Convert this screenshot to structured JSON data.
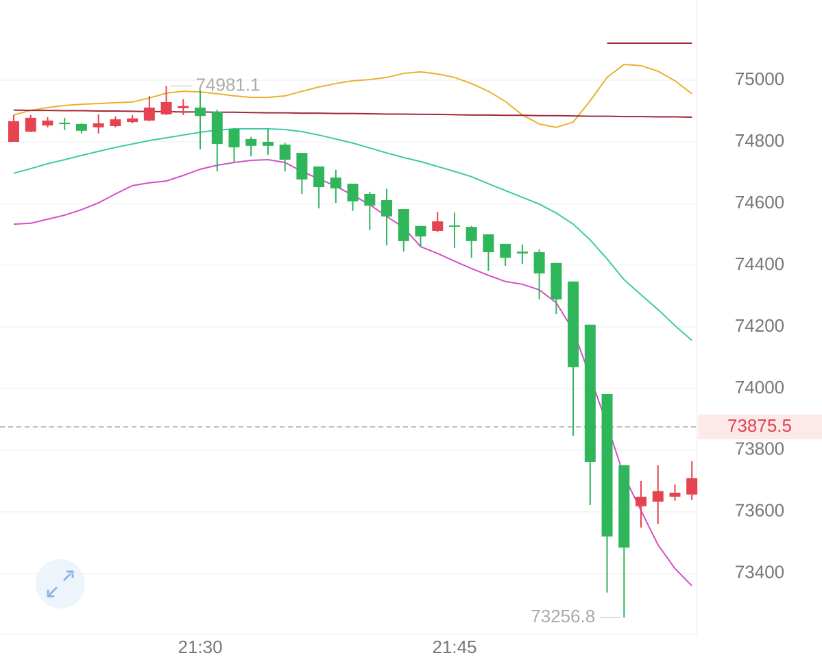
{
  "chart_data": {
    "type": "candlestick",
    "categories": [
      null,
      null,
      null,
      null,
      null,
      null,
      null,
      null,
      null,
      null,
      null,
      "21:30",
      null,
      null,
      null,
      null,
      null,
      null,
      null,
      null,
      null,
      null,
      null,
      null,
      null,
      null,
      "21:45",
      null,
      null,
      null,
      null,
      null,
      null,
      null,
      null,
      null,
      null,
      null,
      null,
      null,
      null
    ],
    "open": [
      74800,
      74833,
      74853,
      74862,
      74858,
      74847,
      74851,
      74864,
      74869,
      74889,
      74909,
      74911,
      74898,
      74842,
      74809,
      74800,
      74791,
      74764,
      74720,
      74684,
      74664,
      74631,
      74611,
      74582,
      74527,
      74511,
      74529,
      74524,
      74500,
      74469,
      74444,
      74442,
      74407,
      74347,
      74207,
      73982,
      73751,
      73618,
      73633,
      73649,
      73656
    ],
    "high": [
      74887,
      74887,
      74880,
      74878,
      74860,
      74889,
      74882,
      74887,
      74949,
      74981.1,
      74938,
      74967,
      74904,
      74844,
      74816,
      74842,
      74796,
      74764,
      74720,
      74709,
      74664,
      74638,
      74647,
      74582,
      74527,
      74573,
      74571,
      74527,
      74500,
      74469,
      74467,
      74451,
      74407,
      74347,
      74207,
      73982,
      73751,
      73700,
      73751,
      73689,
      73764
    ],
    "low": [
      74800,
      74831,
      74847,
      74838,
      74827,
      74827,
      74847,
      74860,
      74867,
      74887,
      74887,
      74776,
      74704,
      74733,
      74753,
      74758,
      74704,
      74631,
      74584,
      74602,
      74576,
      74513,
      74464,
      74444,
      74460,
      74507,
      74456,
      74424,
      74382,
      74398,
      74404,
      74289,
      74242,
      73847,
      73622,
      73338,
      73256.8,
      73549,
      73560,
      73636,
      73638
    ],
    "close": [
      74867,
      74878,
      74869,
      74858,
      74836,
      74860,
      74873,
      74876,
      74911,
      74929,
      74916,
      74884,
      74793,
      74782,
      74787,
      74787,
      74742,
      74678,
      74653,
      74649,
      74607,
      74593,
      74558,
      74478,
      74493,
      74542,
      74527,
      74478,
      74442,
      74424,
      74438,
      74373,
      74289,
      74069,
      73762,
      73520,
      73484,
      73649,
      73667,
      73662,
      73709
    ],
    "up_color": "#e5434f",
    "down_color": "#2fb55a",
    "lines": [
      {
        "color": "#e8b12e",
        "values": [
          74887,
          74902,
          74911,
          74918,
          74922,
          74924,
          74927,
          74929,
          74942,
          74958,
          74964,
          74962,
          74956,
          74949,
          74944,
          74944,
          74949,
          74964,
          74978,
          74989,
          74998,
          75002,
          75009,
          75022,
          75027,
          75020,
          75009,
          74989,
          74964,
          74931,
          74887,
          74858,
          74847,
          74864,
          74933,
          75009,
          75051,
          75047,
          75029,
          74998,
          74956
        ]
      },
      {
        "color": "#3ccaa6",
        "values": [
          74698,
          74713,
          74729,
          74742,
          74756,
          74769,
          74782,
          74793,
          74804,
          74813,
          74822,
          74831,
          74838,
          74842,
          74842,
          74842,
          74840,
          74833,
          74822,
          74809,
          74796,
          74780,
          74764,
          74749,
          74736,
          74720,
          74704,
          74687,
          74664,
          74642,
          74620,
          74598,
          74569,
          74533,
          74482,
          74420,
          74353,
          74304,
          74256,
          74204,
          74156
        ]
      },
      {
        "color": "#d44fc4",
        "values": [
          74533,
          74536,
          74549,
          74562,
          74580,
          74602,
          74631,
          74658,
          74667,
          74673,
          74691,
          74711,
          74724,
          74733,
          74740,
          74742,
          74733,
          74704,
          74680,
          74656,
          74627,
          74596,
          74558,
          74522,
          74460,
          74438,
          74413,
          74389,
          74367,
          74347,
          74338,
          74320,
          74278,
          74189,
          74038,
          73882,
          73716,
          73604,
          73493,
          73416,
          73360
        ]
      },
      {
        "color": "#a0283a",
        "values": [
          74903,
          74902,
          74902,
          74901,
          74901,
          74900,
          74900,
          74899,
          74898,
          74898,
          74897,
          74897,
          74896,
          74896,
          74895,
          74894,
          74894,
          74893,
          74893,
          74892,
          74892,
          74891,
          74890,
          74890,
          74889,
          74889,
          74888,
          74887,
          74887,
          74886,
          74886,
          74885,
          74885,
          74884,
          74883,
          74883,
          74882,
          74882,
          74881,
          74881,
          74880
        ]
      },
      {
        "color": "#a0283a",
        "values": [
          null,
          null,
          null,
          null,
          null,
          null,
          null,
          null,
          null,
          null,
          null,
          null,
          null,
          null,
          null,
          null,
          null,
          null,
          null,
          null,
          null,
          null,
          null,
          null,
          null,
          null,
          null,
          null,
          null,
          null,
          null,
          null,
          null,
          null,
          null,
          75120,
          75120,
          75120,
          75120,
          75120,
          75120
        ]
      }
    ],
    "current_price": 73875.5,
    "ylim": [
      73204,
      75260
    ],
    "yticks": [
      73400,
      73600,
      73800,
      74000,
      74200,
      74400,
      74600,
      74800,
      75000
    ],
    "grid": true
  }
}
